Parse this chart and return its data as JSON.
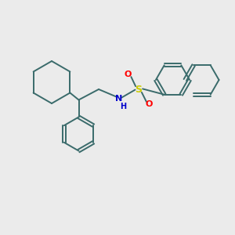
{
  "background_color": "#ebebeb",
  "bond_color": "#3a6b6b",
  "bond_width": 1.4,
  "N_color": "#0000cc",
  "S_color": "#cccc00",
  "O_color": "#ff0000",
  "figsize": [
    3.0,
    3.0
  ],
  "dpi": 100,
  "xlim": [
    0,
    10
  ],
  "ylim": [
    0,
    10
  ]
}
